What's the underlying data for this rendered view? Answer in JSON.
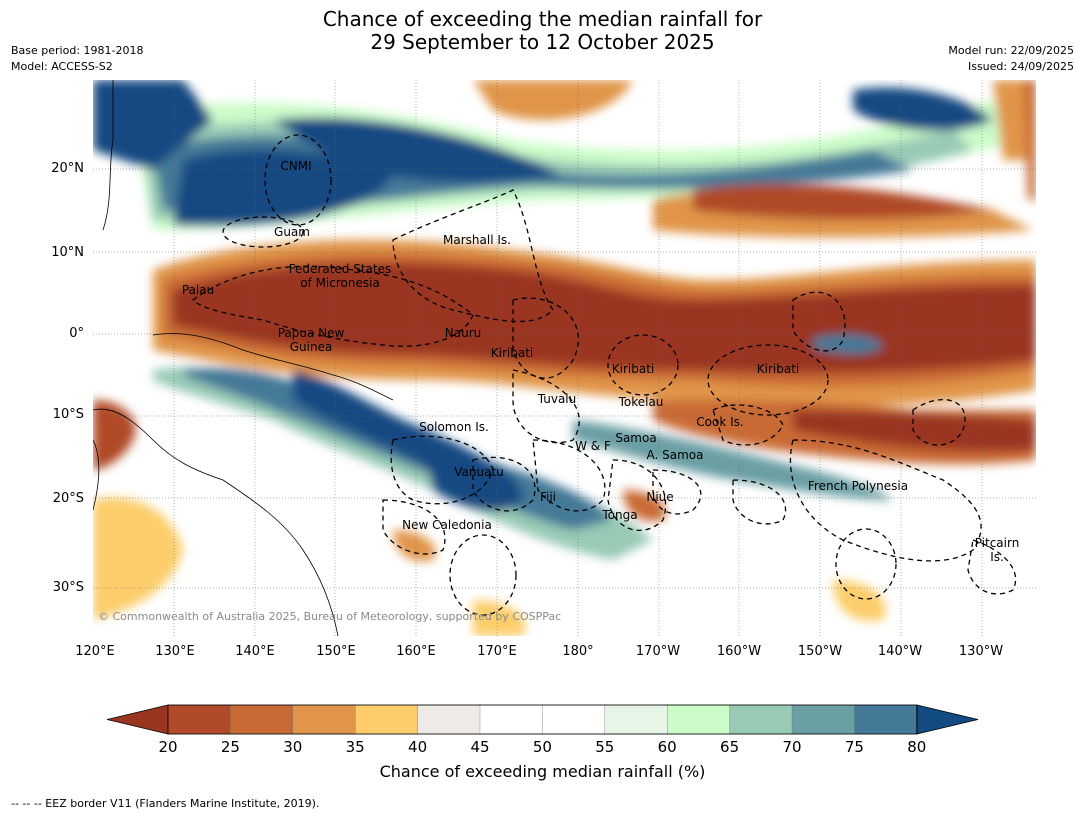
{
  "title_line1": "Chance of exceeding the median rainfall for",
  "title_line2": "29 September to 12 October 2025",
  "base_period": "Base period: 1981-2018",
  "model": "Model: ACCESS-S2",
  "model_run": "Model run: 22/09/2025",
  "issued": "Issued: 24/09/2025",
  "copyright": "© Commonwealth of Australia 2025, Bureau of Meteorology, supported by COSPPac",
  "footnote": "--  --  -- EEZ border V11 (Flanders Marine Institute, 2019).",
  "lat_labels": [
    "20°N",
    "10°N",
    "0°",
    "10°S",
    "20°S",
    "30°S"
  ],
  "lon_labels": [
    "120°E",
    "130°E",
    "140°E",
    "150°E",
    "160°E",
    "170°E",
    "180°",
    "170°W",
    "160°W",
    "150°W",
    "140°W",
    "130°W"
  ],
  "places": {
    "cnmi": "CNMI",
    "guam": "Guam",
    "marshall": "Marshall Is.",
    "fsm_1": "Federated States",
    "fsm_2": "of Micronesia",
    "palau": "Palau",
    "png_1": "Papua New",
    "png_2": "Guinea",
    "nauru": "Nauru",
    "kiribati_w": "Kiribati",
    "kiribati_c": "Kiribati",
    "kiribati_e": "Kiribati",
    "tuvalu": "Tuvalu",
    "tokelau": "Tokelau",
    "cook": "Cook Is.",
    "solomon": "Solomon Is.",
    "samoa": "Samoa",
    "wf": "W & F",
    "asamoa": "A. Samoa",
    "vanuatu": "Vanuatu",
    "fiji": "Fiji",
    "niue": "Niue",
    "frpoly": "French Polynesia",
    "tonga": "Tonga",
    "newcal": "New Caledonia",
    "pitcairn_1": "Pitcairn",
    "pitcairn_2": "Is."
  },
  "colorbar": {
    "title": "Chance of exceeding median rainfall (%)",
    "ticks": [
      "20",
      "25",
      "30",
      "35",
      "40",
      "45",
      "50",
      "55",
      "60",
      "65",
      "70",
      "75",
      "80"
    ],
    "colors": [
      "#9a3520",
      "#b04a28",
      "#c96a34",
      "#e0954a",
      "#fccd6a",
      "#eeebe6",
      "#ffffff",
      "#ffffff",
      "#e6f5e6",
      "#ccfcc9",
      "#99cab6",
      "#6a9fa4",
      "#447998",
      "#124a82"
    ]
  }
}
